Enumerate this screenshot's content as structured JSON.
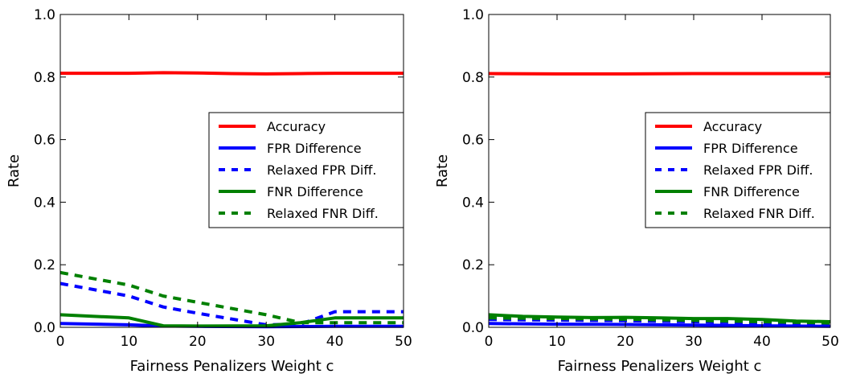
{
  "chart_data": [
    {
      "type": "line",
      "xlabel": "Fairness Penalizers Weight c",
      "ylabel": "Rate",
      "xlim": [
        0,
        50
      ],
      "ylim": [
        0,
        1.0
      ],
      "xticks": [
        0,
        10,
        20,
        30,
        40,
        50
      ],
      "yticks": [
        0.0,
        0.2,
        0.4,
        0.6,
        0.8,
        1.0
      ],
      "xtick_labels": [
        "0",
        "10",
        "20",
        "30",
        "40",
        "50"
      ],
      "ytick_labels": [
        "0.0",
        "0.2",
        "0.4",
        "0.6",
        "0.8",
        "1.0"
      ],
      "grid": false,
      "legend_position": "center-right",
      "series": [
        {
          "name": "Accuracy",
          "color": "#ff0000",
          "style": "solid",
          "x": [
            0,
            5,
            10,
            15,
            20,
            25,
            30,
            35,
            40,
            45,
            50
          ],
          "y": [
            0.812,
            0.812,
            0.812,
            0.814,
            0.813,
            0.811,
            0.81,
            0.811,
            0.812,
            0.812,
            0.812
          ]
        },
        {
          "name": "FPR Difference",
          "color": "#0000ff",
          "style": "solid",
          "x": [
            0,
            10,
            15,
            20,
            30,
            40,
            50
          ],
          "y": [
            0.012,
            0.008,
            0.004,
            0.003,
            0.002,
            0.003,
            0.003
          ]
        },
        {
          "name": "Relaxed FPR Diff.",
          "color": "#0000ff",
          "style": "dashed",
          "x": [
            0,
            10,
            15,
            20,
            30,
            35,
            40,
            45,
            50
          ],
          "y": [
            0.14,
            0.1,
            0.065,
            0.045,
            0.008,
            0.01,
            0.05,
            0.05,
            0.05
          ]
        },
        {
          "name": "FNR Difference",
          "color": "#008000",
          "style": "solid",
          "x": [
            0,
            10,
            15,
            20,
            30,
            35,
            40,
            45,
            50
          ],
          "y": [
            0.04,
            0.03,
            0.005,
            0.004,
            0.005,
            0.015,
            0.03,
            0.03,
            0.03
          ]
        },
        {
          "name": "Relaxed FNR Diff.",
          "color": "#008000",
          "style": "dashed",
          "x": [
            0,
            10,
            15,
            20,
            30,
            35,
            40,
            45,
            50
          ],
          "y": [
            0.175,
            0.135,
            0.1,
            0.08,
            0.04,
            0.015,
            0.015,
            0.015,
            0.015
          ]
        }
      ]
    },
    {
      "type": "line",
      "xlabel": "Fairness Penalizers Weight c",
      "ylabel": "Rate",
      "xlim": [
        0,
        50
      ],
      "ylim": [
        0,
        1.0
      ],
      "xticks": [
        0,
        10,
        20,
        30,
        40,
        50
      ],
      "yticks": [
        0.0,
        0.2,
        0.4,
        0.6,
        0.8,
        1.0
      ],
      "xtick_labels": [
        "0",
        "10",
        "20",
        "30",
        "40",
        "50"
      ],
      "ytick_labels": [
        "0.0",
        "0.2",
        "0.4",
        "0.6",
        "0.8",
        "1.0"
      ],
      "grid": false,
      "legend_position": "center-right",
      "series": [
        {
          "name": "Accuracy",
          "color": "#ff0000",
          "style": "solid",
          "x": [
            0,
            10,
            20,
            30,
            40,
            50
          ],
          "y": [
            0.811,
            0.81,
            0.81,
            0.811,
            0.811,
            0.811
          ]
        },
        {
          "name": "FPR Difference",
          "color": "#0000ff",
          "style": "solid",
          "x": [
            0,
            10,
            20,
            30,
            40,
            50
          ],
          "y": [
            0.012,
            0.01,
            0.009,
            0.007,
            0.005,
            0.003
          ]
        },
        {
          "name": "Relaxed FPR Diff.",
          "color": "#0000ff",
          "style": "dashed",
          "x": [
            0,
            10,
            20,
            30,
            40,
            50
          ],
          "y": [
            0.025,
            0.023,
            0.021,
            0.018,
            0.014,
            0.008
          ]
        },
        {
          "name": "FNR Difference",
          "color": "#008000",
          "style": "solid",
          "x": [
            0,
            5,
            10,
            15,
            20,
            25,
            30,
            35,
            40,
            45,
            50
          ],
          "y": [
            0.04,
            0.035,
            0.033,
            0.031,
            0.032,
            0.03,
            0.028,
            0.028,
            0.025,
            0.02,
            0.018
          ]
        },
        {
          "name": "Relaxed FNR Diff.",
          "color": "#008000",
          "style": "dashed",
          "x": [
            0,
            10,
            20,
            30,
            40,
            50
          ],
          "y": [
            0.03,
            0.028,
            0.026,
            0.022,
            0.018,
            0.014
          ]
        }
      ]
    }
  ]
}
